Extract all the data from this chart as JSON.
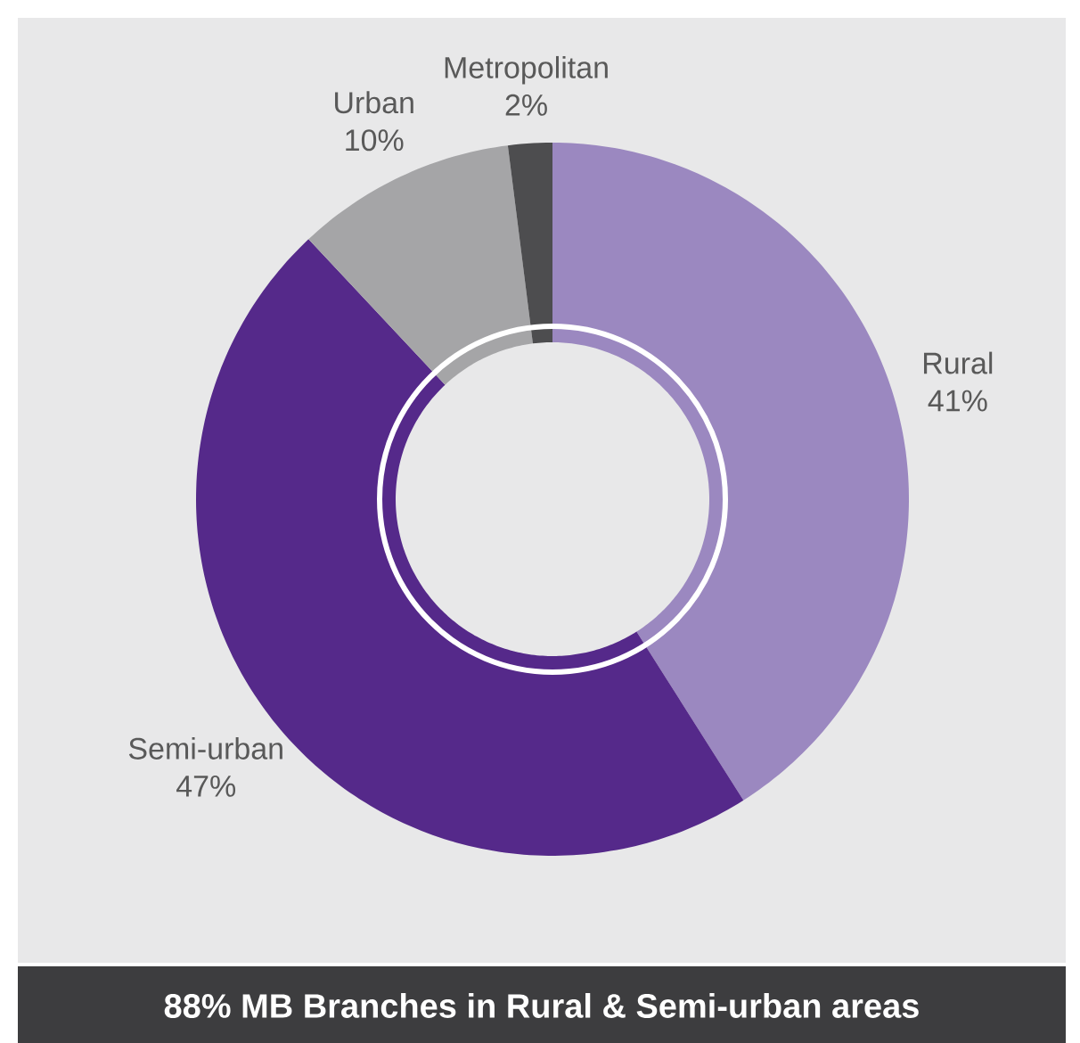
{
  "chart_data": {
    "type": "donut",
    "title": "88% MB Branches in Rural & Semi-urban areas",
    "categories": [
      "Rural",
      "Semi-urban",
      "Urban",
      "Metropolitan"
    ],
    "values": [
      41,
      47,
      10,
      2
    ],
    "value_labels": [
      "41%",
      "47%",
      "10%",
      "2%"
    ],
    "colors": [
      "#9b88c0",
      "#55298a",
      "#a5a5a7",
      "#4d4d4f"
    ]
  }
}
